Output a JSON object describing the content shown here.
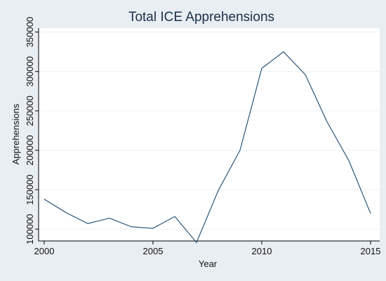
{
  "chart_data": {
    "type": "line",
    "title": "Total ICE Apprehensions",
    "xlabel": "Year",
    "ylabel": "Apprehensions",
    "xlim": [
      2000,
      2015
    ],
    "ylim": [
      85000,
      355000
    ],
    "x_ticks": [
      2000,
      2005,
      2010,
      2015
    ],
    "y_ticks": [
      100000,
      150000,
      200000,
      250000,
      300000,
      350000
    ],
    "grid": "horizontal",
    "series": [
      {
        "x": [
          2000,
          2001,
          2002,
          2003,
          2004,
          2005,
          2006,
          2007,
          2008,
          2009,
          2010,
          2011,
          2012,
          2013,
          2014,
          2015
        ],
        "values": [
          138000,
          121000,
          107000,
          114000,
          103000,
          101000,
          116000,
          83000,
          149000,
          200000,
          304000,
          325000,
          296000,
          236000,
          187000,
          120000
        ],
        "color": "#1a476f"
      }
    ]
  },
  "colors": {
    "background": "#e9eef2",
    "plot_background": "#ffffff",
    "grid": "#eaf0f4",
    "axis": "#000000",
    "line": "#1a476f",
    "title": "#1a2f4a"
  }
}
